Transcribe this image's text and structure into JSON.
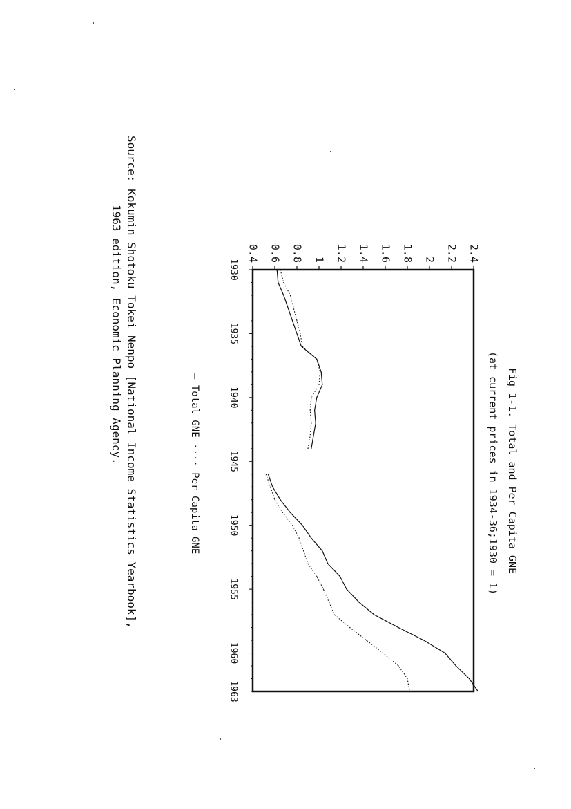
{
  "chart_data": {
    "type": "line",
    "title": "Fig 1-1. Total and Per Capita GNE",
    "subtitle": "(at current prices in 1934-36;1930 = 1)",
    "xlabel": "",
    "ylabel": "",
    "xlim": [
      1930,
      1963
    ],
    "ylim": [
      0.4,
      2.4
    ],
    "x_ticks": [
      "1930",
      "1935",
      "1940",
      "1945",
      "1950",
      "1955",
      "1960",
      "1963"
    ],
    "y_ticks": [
      "0.4",
      "0.6",
      "0.8",
      "1",
      "1.2",
      "1.4",
      "1.6",
      "1.8",
      "2",
      "2.2",
      "2.4"
    ],
    "grid": false,
    "legend_position": "bottom",
    "legend_text": "— Total GNE ···· Per Capita GNE",
    "series": [
      {
        "name": "Total GNE",
        "style": "solid",
        "segments": [
          [
            [
              1930,
              0.62
            ],
            [
              1931,
              0.63
            ],
            [
              1932,
              0.68
            ],
            [
              1933,
              0.72
            ],
            [
              1934,
              0.76
            ],
            [
              1935,
              0.8
            ],
            [
              1936,
              0.84
            ],
            [
              1937,
              0.98
            ],
            [
              1938,
              1.02
            ],
            [
              1939,
              1.03
            ],
            [
              1940,
              0.98
            ],
            [
              1941,
              0.96
            ],
            [
              1942,
              0.97
            ],
            [
              1943,
              0.95
            ],
            [
              1944,
              0.93
            ]
          ],
          [
            [
              1946,
              0.54
            ],
            [
              1947,
              0.58
            ],
            [
              1948,
              0.65
            ],
            [
              1949,
              0.74
            ],
            [
              1950,
              0.85
            ],
            [
              1951,
              0.93
            ],
            [
              1952,
              1.03
            ],
            [
              1953,
              1.08
            ],
            [
              1954,
              1.19
            ],
            [
              1955,
              1.25
            ],
            [
              1956,
              1.36
            ],
            [
              1957,
              1.5
            ],
            [
              1958,
              1.72
            ],
            [
              1959,
              1.95
            ],
            [
              1960,
              2.14
            ],
            [
              1961,
              2.24
            ],
            [
              1962,
              2.36
            ],
            [
              1963,
              2.44
            ]
          ]
        ]
      },
      {
        "name": "Per Capita GNE",
        "style": "dotted",
        "segments": [
          [
            [
              1930,
              0.65
            ],
            [
              1931,
              0.68
            ],
            [
              1932,
              0.74
            ],
            [
              1933,
              0.77
            ],
            [
              1934,
              0.8
            ],
            [
              1935,
              0.83
            ],
            [
              1936,
              0.85
            ],
            [
              1937,
              0.98
            ],
            [
              1938,
              1.01
            ],
            [
              1939,
              1.0
            ],
            [
              1940,
              0.93
            ],
            [
              1941,
              0.92
            ],
            [
              1942,
              0.93
            ],
            [
              1943,
              0.92
            ],
            [
              1944,
              0.9
            ]
          ],
          [
            [
              1946,
              0.52
            ],
            [
              1947,
              0.56
            ],
            [
              1948,
              0.6
            ],
            [
              1949,
              0.67
            ],
            [
              1950,
              0.76
            ],
            [
              1951,
              0.82
            ],
            [
              1952,
              0.86
            ],
            [
              1953,
              0.9
            ],
            [
              1954,
              0.98
            ],
            [
              1955,
              1.04
            ],
            [
              1956,
              1.09
            ],
            [
              1957,
              1.14
            ],
            [
              1958,
              1.28
            ],
            [
              1959,
              1.43
            ],
            [
              1960,
              1.58
            ],
            [
              1961,
              1.72
            ],
            [
              1962,
              1.8
            ],
            [
              1963,
              1.82
            ]
          ]
        ]
      }
    ]
  },
  "source": {
    "line1": "Source: Kokumin Shotoku Tokei Nenpo [National Income Statistics Yearbook],",
    "line2": "1963 edition, Economic Planning Agency."
  },
  "colors": {
    "ink": "#111111",
    "paper": "#ffffff"
  }
}
